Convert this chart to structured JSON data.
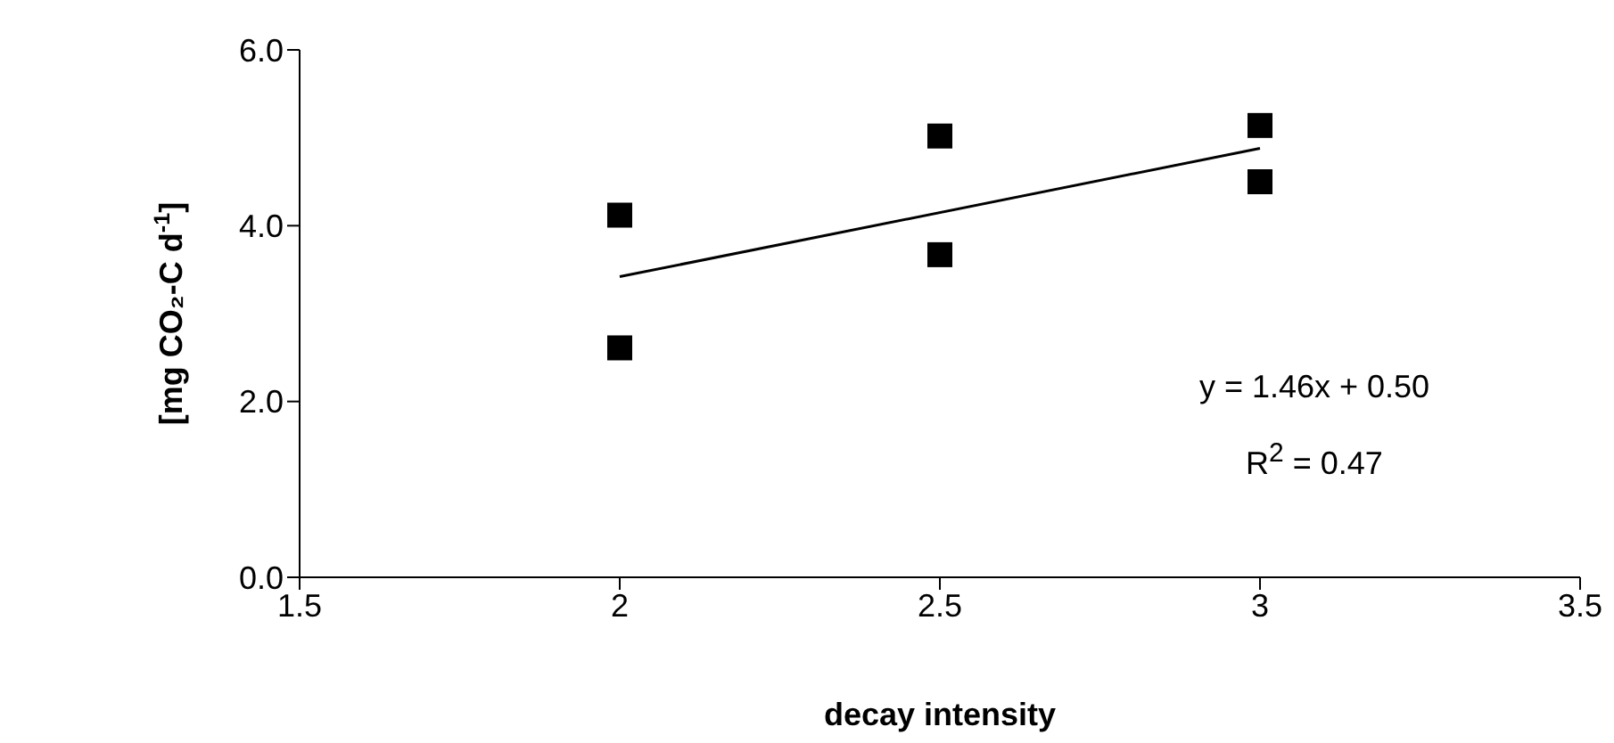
{
  "chart_data": {
    "type": "scatter",
    "xlabel": "decay intensity",
    "ylabel": "[mg CO₂-C d$^{-1}$]",
    "xlim": [
      1.5,
      3.5
    ],
    "xticks": [
      1.5,
      2,
      2.5,
      3,
      3.5
    ],
    "ylim": [
      0,
      6
    ],
    "yticks": [
      {
        "value": 0,
        "label": "0.0"
      },
      {
        "value": 2,
        "label": "2.0"
      },
      {
        "value": 4,
        "label": "4.0"
      },
      {
        "value": 6,
        "label": "6.0"
      }
    ],
    "annotations": [
      "y = 1.46x + 0.50",
      "R$^{2}$ = 0.47"
    ],
    "series": [
      {
        "marker": "square",
        "color": "#000000",
        "x": [
          2,
          2,
          2.5,
          2.5,
          3,
          3
        ],
        "values": [
          4.12,
          2.61,
          5.02,
          3.67,
          5.14,
          4.5
        ]
      },
      {
        "type": "line",
        "marker": "none",
        "color": "#000000",
        "x": [
          2,
          3
        ],
        "values": [
          3.42,
          4.88
        ]
      }
    ]
  }
}
